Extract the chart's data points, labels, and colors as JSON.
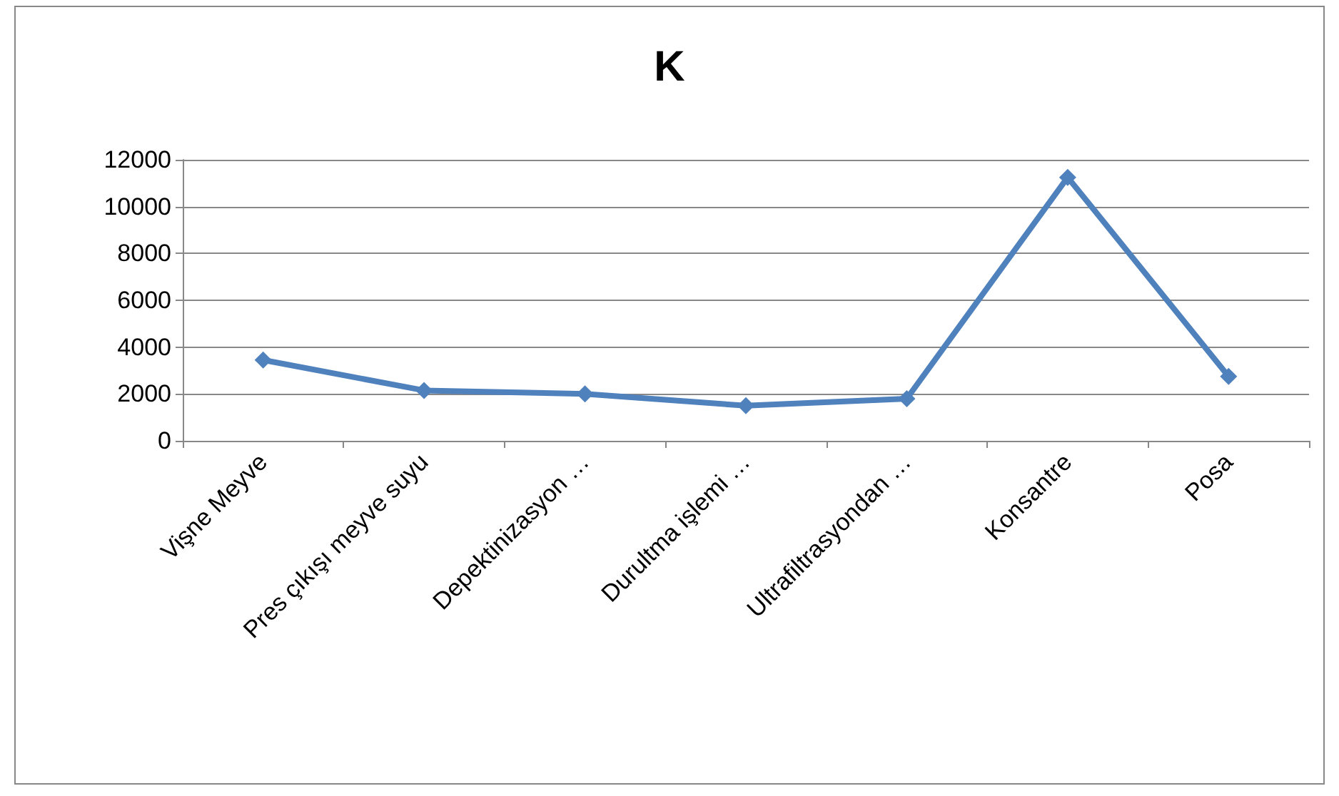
{
  "chart_data": {
    "type": "line",
    "title": "K",
    "categories": [
      "Vişne Meyve",
      "Pres çıkışı meyve suyu",
      "Depektinizasyon …",
      "Durultma işlemi …",
      "Ultrafiltrasyondan …",
      "Konsantre",
      "Posa"
    ],
    "series": [
      {
        "color": "#4f81bd",
        "values": [
          3450,
          2150,
          2000,
          1500,
          1800,
          11250,
          2750
        ]
      }
    ],
    "ylim": [
      0,
      12000
    ],
    "yticks": [
      0,
      2000,
      4000,
      6000,
      8000,
      10000,
      12000
    ],
    "grid": "y",
    "marker": "diamond",
    "line_style": "solid"
  }
}
